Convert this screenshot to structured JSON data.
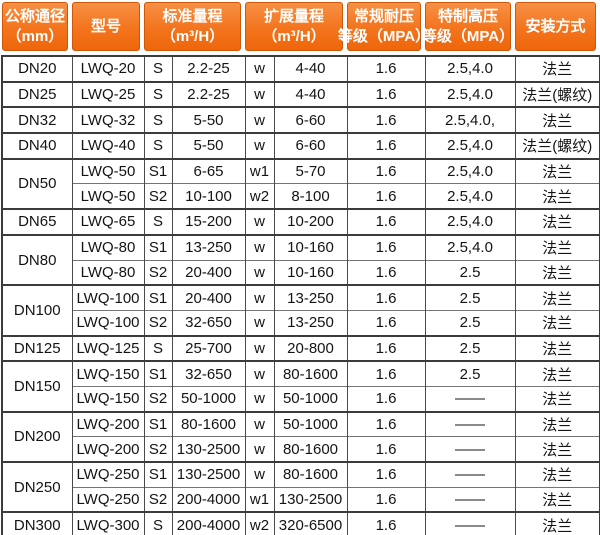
{
  "colors": {
    "header_orange_top": "#f79045",
    "header_orange_bottom": "#ee660a",
    "header_border": "#cf5708",
    "header_text": "#ffffff",
    "grid_dark": "#3b3b3b",
    "grid_light": "#757575",
    "body_text": "#141414"
  },
  "header": {
    "columns": [
      {
        "id": "nominal-diameter",
        "lines": [
          "公称通径",
          "（mm）"
        ]
      },
      {
        "id": "model",
        "lines": [
          "型号"
        ]
      },
      {
        "id": "standard-range",
        "lines": [
          "标准量程",
          "（m³/H）"
        ]
      },
      {
        "id": "extended-range",
        "lines": [
          "扩展量程",
          "（m³/H）"
        ]
      },
      {
        "id": "normal-pressure",
        "lines": [
          "常规耐压",
          "等级（MPA）"
        ]
      },
      {
        "id": "high-pressure",
        "lines": [
          "特制高压",
          "等级（MPA）"
        ]
      },
      {
        "id": "installation",
        "lines": [
          "安装方式"
        ]
      }
    ]
  },
  "table": {
    "groups": [
      {
        "dn": "DN20",
        "rows": [
          [
            "LWQ-20",
            "S",
            "2.2-25",
            "w",
            "4-40",
            "1.6",
            "2.5,4.0",
            "法兰"
          ]
        ]
      },
      {
        "dn": "DN25",
        "rows": [
          [
            "LWQ-25",
            "S",
            "2.2-25",
            "w",
            "4-40",
            "1.6",
            "2.5,4.0",
            "法兰(螺纹)"
          ]
        ]
      },
      {
        "dn": "DN32",
        "rows": [
          [
            "LWQ-32",
            "S",
            "5-50",
            "w",
            "6-60",
            "1.6",
            "2.5,4.0,",
            "法兰"
          ]
        ]
      },
      {
        "dn": "DN40",
        "rows": [
          [
            "LWQ-40",
            "S",
            "5-50",
            "w",
            "6-60",
            "1.6",
            "2.5,4.0",
            "法兰(螺纹)"
          ]
        ]
      },
      {
        "dn": "DN50",
        "rows": [
          [
            "LWQ-50",
            "S1",
            "6-65",
            "w1",
            "5-70",
            "1.6",
            "2.5,4.0",
            "法兰"
          ],
          [
            "LWQ-50",
            "S2",
            "10-100",
            "w2",
            "8-100",
            "1.6",
            "2.5,4.0",
            "法兰"
          ]
        ]
      },
      {
        "dn": "DN65",
        "rows": [
          [
            "LWQ-65",
            "S",
            "15-200",
            "w",
            "10-200",
            "1.6",
            "2.5,4.0",
            "法兰"
          ]
        ]
      },
      {
        "dn": "DN80",
        "rows": [
          [
            "LWQ-80",
            "S1",
            "13-250",
            "w",
            "10-160",
            "1.6",
            "2.5,4.0",
            "法兰"
          ],
          [
            "LWQ-80",
            "S2",
            "20-400",
            "w",
            "10-160",
            "1.6",
            "2.5",
            "法兰"
          ]
        ]
      },
      {
        "dn": "DN100",
        "rows": [
          [
            "LWQ-100",
            "S1",
            "20-400",
            "w",
            "13-250",
            "1.6",
            "2.5",
            "法兰"
          ],
          [
            "LWQ-100",
            "S2",
            "32-650",
            "w",
            "13-250",
            "1.6",
            "2.5",
            "法兰"
          ]
        ]
      },
      {
        "dn": "DN125",
        "rows": [
          [
            "LWQ-125",
            "S",
            "25-700",
            "w",
            "20-800",
            "1.6",
            "2.5",
            "法兰"
          ]
        ]
      },
      {
        "dn": "DN150",
        "rows": [
          [
            "LWQ-150",
            "S1",
            "32-650",
            "w",
            "80-1600",
            "1.6",
            "2.5",
            "法兰"
          ],
          [
            "LWQ-150",
            "S2",
            "50-1000",
            "w",
            "50-1000",
            "1.6",
            "——",
            "法兰"
          ]
        ]
      },
      {
        "dn": "DN200",
        "rows": [
          [
            "LWQ-200",
            "S1",
            "80-1600",
            "w",
            "50-1000",
            "1.6",
            "——",
            "法兰"
          ],
          [
            "LWQ-200",
            "S2",
            "130-2500",
            "w",
            "80-1600",
            "1.6",
            "——",
            "法兰"
          ]
        ]
      },
      {
        "dn": "DN250",
        "rows": [
          [
            "LWQ-250",
            "S1",
            "130-2500",
            "w",
            "80-1600",
            "1.6",
            "——",
            "法兰"
          ],
          [
            "LWQ-250",
            "S2",
            "200-4000",
            "w1",
            "130-2500",
            "1.6",
            "——",
            "法兰"
          ]
        ]
      },
      {
        "dn": "DN300",
        "rows": [
          [
            "LWQ-300",
            "S",
            "200-4000",
            "w2",
            "320-6500",
            "1.6",
            "——",
            "法兰"
          ]
        ]
      }
    ]
  }
}
